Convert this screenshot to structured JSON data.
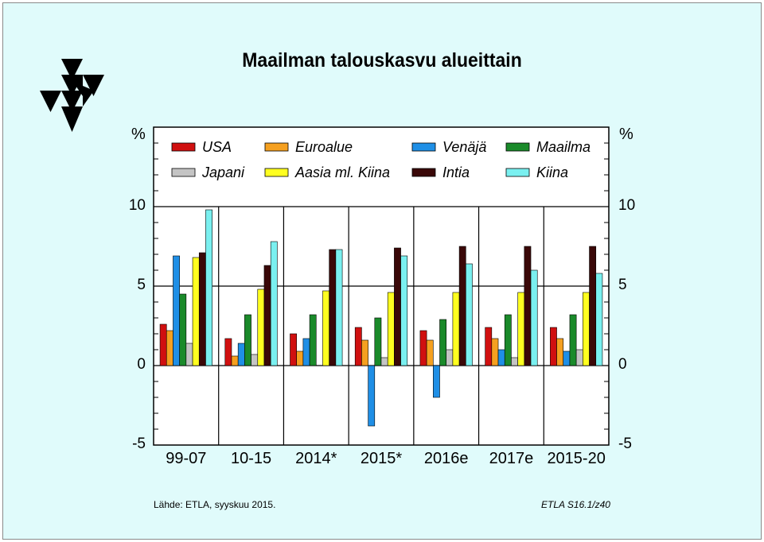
{
  "title": "Maailman talouskasvu alueittain",
  "unit_left": "%",
  "unit_right": "%",
  "footer": {
    "source": "Lähde:   ETLA, syyskuu 2015.",
    "id": "ETLA S16.1/z40"
  },
  "colors": {
    "background": "#e0fbfb",
    "USA": "#d01010",
    "Euroalue": "#f5a020",
    "Venäjä": "#1f8fe6",
    "Maailma": "#1a8a2a",
    "Japani": "#c4c4c4",
    "Aasia ml. Kiina": "#ffff20",
    "Intia": "#3a0808",
    "Kiina": "#7af0f0"
  },
  "chart_data": {
    "type": "bar",
    "title": "Maailman talouskasvu alueittain",
    "xlabel": "",
    "ylabel": "%",
    "ylim": [
      -5,
      15
    ],
    "yticks": [
      -5,
      0,
      5,
      10
    ],
    "grid": true,
    "legend": "top",
    "categories": [
      "99-07",
      "10-15",
      "2014*",
      "2015*",
      "2016e",
      "2017e",
      "2015-20"
    ],
    "series": [
      {
        "name": "USA",
        "values": [
          2.6,
          1.7,
          2.0,
          2.4,
          2.2,
          2.4,
          2.4
        ]
      },
      {
        "name": "Euroalue",
        "values": [
          2.2,
          0.6,
          0.9,
          1.6,
          1.6,
          1.7,
          1.7
        ]
      },
      {
        "name": "Venäjä",
        "values": [
          6.9,
          1.4,
          1.7,
          -3.8,
          -2.0,
          1.0,
          0.9
        ]
      },
      {
        "name": "Maailma",
        "values": [
          4.5,
          3.2,
          3.2,
          3.0,
          2.9,
          3.2,
          3.2
        ]
      },
      {
        "name": "Japani",
        "values": [
          1.4,
          0.7,
          0.0,
          0.5,
          1.0,
          0.5,
          1.0
        ]
      },
      {
        "name": "Aasia ml. Kiina",
        "values": [
          6.8,
          4.8,
          4.7,
          4.6,
          4.6,
          4.6,
          4.6
        ]
      },
      {
        "name": "Intia",
        "values": [
          7.1,
          6.3,
          7.3,
          7.4,
          7.5,
          7.5,
          7.5
        ]
      },
      {
        "name": "Kiina",
        "values": [
          9.8,
          7.8,
          7.3,
          6.9,
          6.4,
          6.0,
          5.8
        ]
      }
    ]
  }
}
